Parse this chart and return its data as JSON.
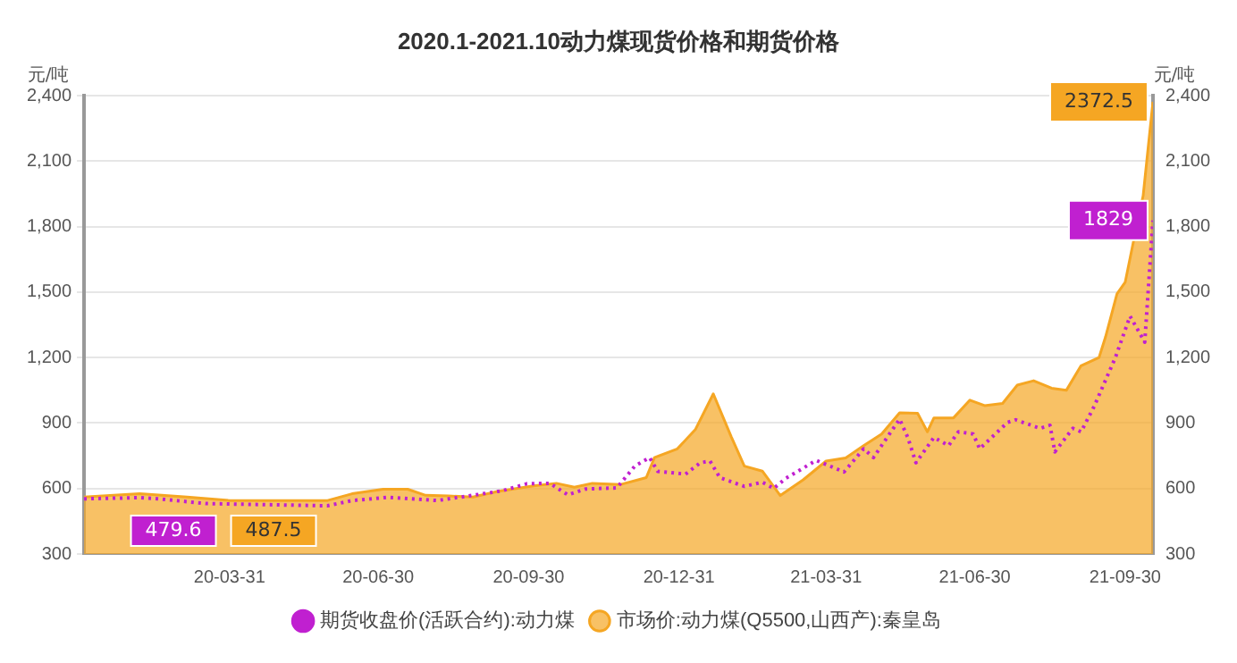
{
  "chart_data": {
    "type": "line",
    "title": "2020.1-2021.10动力煤现货价格和期货价格",
    "ylabel": "元/吨",
    "y2label": "元/吨",
    "xlim": [
      "2020-01-02",
      "2021-10-17"
    ],
    "xticks": [
      {
        "value": "2020-03-31",
        "label": "20-03-31"
      },
      {
        "value": "2020-06-30",
        "label": "20-06-30"
      },
      {
        "value": "2020-09-30",
        "label": "20-09-30"
      },
      {
        "value": "2020-12-31",
        "label": "20-12-31"
      },
      {
        "value": "2021-03-31",
        "label": "21-03-31"
      },
      {
        "value": "2021-06-30",
        "label": "21-06-30"
      },
      {
        "value": "2021-09-30",
        "label": "21-09-30"
      }
    ],
    "ylim": [
      300,
      2400
    ],
    "yticks": [
      300,
      600,
      900,
      {
        "value": 1200,
        "label": "1,200"
      },
      {
        "value": 1500,
        "label": "1,500"
      },
      {
        "value": 1800,
        "label": "1,800"
      },
      {
        "value": 2100,
        "label": "2,100"
      },
      {
        "value": 2400,
        "label": "2,400"
      }
    ],
    "y2lim": [
      300,
      2400
    ],
    "y2ticks": [
      300,
      600,
      900,
      {
        "value": 1200,
        "label": "1,200"
      },
      {
        "value": 1500,
        "label": "1,500"
      },
      {
        "value": 1800,
        "label": "1,800"
      },
      {
        "value": 2100,
        "label": "2,100"
      },
      {
        "value": 2400,
        "label": "2,400"
      }
    ],
    "grid": "y",
    "legend": "bottom",
    "series": [
      {
        "name": "期货收盘价(活跃合约):动力煤",
        "color": "#c020d0",
        "line_style": "dotted",
        "x": [
          "2020-01-02",
          "2020-02-05",
          "2020-02-16",
          "2020-03-17",
          "2020-05-30",
          "2020-06-14",
          "2020-07-06",
          "2020-08-05",
          "2020-08-27",
          "2020-09-14",
          "2020-09-29",
          "2020-10-13",
          "2020-10-24",
          "2020-11-04",
          "2020-11-23",
          "2020-12-04",
          "2020-12-13",
          "2020-12-18",
          "2021-01-04",
          "2021-01-13",
          "2021-01-19",
          "2021-01-25",
          "2021-02-09",
          "2021-02-20",
          "2021-02-27",
          "2021-03-06",
          "2021-03-25",
          "2021-04-11",
          "2021-04-23",
          "2021-04-29",
          "2021-05-15",
          "2021-05-20",
          "2021-05-25",
          "2021-06-05",
          "2021-06-14",
          "2021-06-20",
          "2021-06-29",
          "2021-07-03",
          "2021-07-20",
          "2021-07-25",
          "2021-08-09",
          "2021-08-15",
          "2021-08-18",
          "2021-08-29",
          "2021-09-03",
          "2021-09-11",
          "2021-09-24",
          "2021-10-03",
          "2021-10-12",
          "2021-10-17"
        ],
        "values": [
          553,
          558,
          553,
          531,
          521,
          545,
          560,
          545,
          569,
          590,
          622,
          624,
          571,
          598,
          603,
          703,
          742,
          679,
          666,
          718,
          726,
          650,
          610,
          629,
          600,
          645,
          729,
          676,
          782,
          742,
          918,
          834,
          718,
          834,
          797,
          860,
          850,
          782,
          903,
          915,
          876,
          890,
          768,
          876,
          860,
          976,
          1200,
          1390,
          1271,
          1829
        ]
      },
      {
        "name": "市场价:动力煤(Q5500,山西产):秦皇岛",
        "type": "area",
        "color": "#f5a623",
        "x": [
          "2020-01-02",
          "2020-02-05",
          "2020-03-05",
          "2020-03-31",
          "2020-05-30",
          "2020-06-14",
          "2020-07-03",
          "2020-07-18",
          "2020-07-29",
          "2020-08-12",
          "2020-08-27",
          "2020-09-11",
          "2020-10-03",
          "2020-10-17",
          "2020-10-28",
          "2020-11-08",
          "2020-11-25",
          "2020-12-11",
          "2020-12-16",
          "2020-12-30",
          "2021-01-10",
          "2021-01-21",
          "2021-02-01",
          "2021-02-09",
          "2021-02-20",
          "2021-03-03",
          "2021-03-17",
          "2021-03-31",
          "2021-04-12",
          "2021-04-23",
          "2021-05-04",
          "2021-05-15",
          "2021-05-26",
          "2021-06-01",
          "2021-06-05",
          "2021-06-17",
          "2021-06-27",
          "2021-07-06",
          "2021-07-17",
          "2021-07-26",
          "2021-08-05",
          "2021-08-16",
          "2021-08-25",
          "2021-09-03",
          "2021-09-14",
          "2021-09-18",
          "2021-09-25",
          "2021-09-30",
          "2021-10-05",
          "2021-10-11",
          "2021-10-17"
        ],
        "values": [
          561,
          576,
          561,
          545,
          545,
          576,
          597,
          597,
          569,
          566,
          561,
          587,
          612,
          624,
          606,
          624,
          618,
          650,
          742,
          782,
          870,
          1034,
          837,
          703,
          680,
          568,
          640,
          726,
          740,
          797,
          850,
          947,
          945,
          860,
          924,
          924,
          1005,
          980,
          990,
          1074,
          1094,
          1060,
          1050,
          1163,
          1200,
          1295,
          1492,
          1545,
          1729,
          1942,
          2372.5
        ]
      }
    ],
    "annotations": [
      "479.6",
      "487.5",
      {
        "text": "1829",
        "x": "2021-10-17",
        "y": 1829
      },
      {
        "text": "2372.5",
        "x": "2021-10-17",
        "y": 2372.5
      }
    ]
  }
}
